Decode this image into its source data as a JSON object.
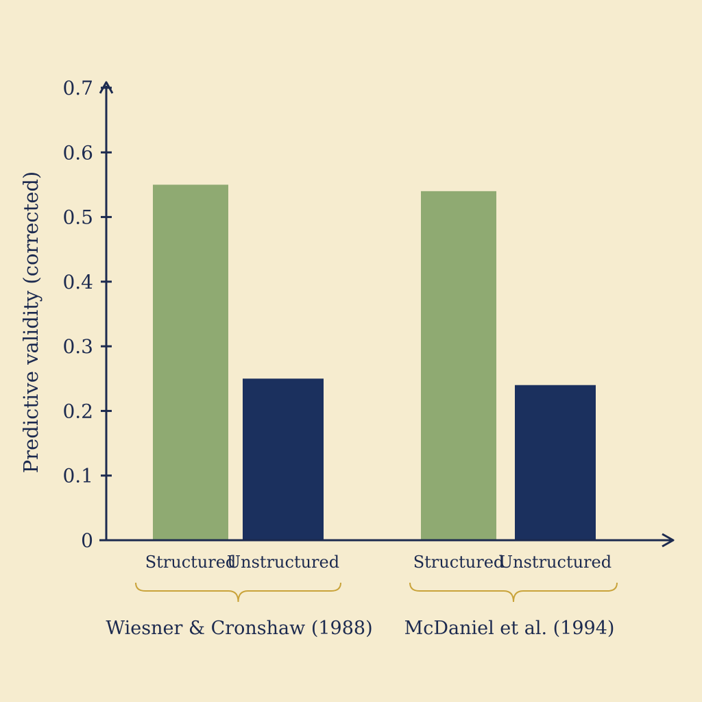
{
  "chart_data": {
    "type": "bar",
    "title": "",
    "xlabel": "",
    "ylabel": "Predictive validity (corrected)",
    "ylim": [
      0,
      0.7
    ],
    "yticks": [
      "0",
      "0.1",
      "0.2",
      "0.3",
      "0.4",
      "0.5",
      "0.6",
      "0.7"
    ],
    "grid": false,
    "groups": [
      {
        "name": "Wiesner & Cronshaw (1988)",
        "bars": [
          {
            "category": "Structured",
            "value": 0.55,
            "color": "#8faa72"
          },
          {
            "category": "Unstructured",
            "value": 0.25,
            "color": "#1b305e"
          }
        ]
      },
      {
        "name": "McDaniel et al. (1994)",
        "bars": [
          {
            "category": "Structured",
            "value": 0.54,
            "color": "#8faa72"
          },
          {
            "category": "Unstructured",
            "value": 0.24,
            "color": "#1b305e"
          }
        ]
      }
    ],
    "colors": {
      "axis": "#1c2a4f",
      "brace": "#c9a33a",
      "background": "#f6eccf"
    }
  }
}
